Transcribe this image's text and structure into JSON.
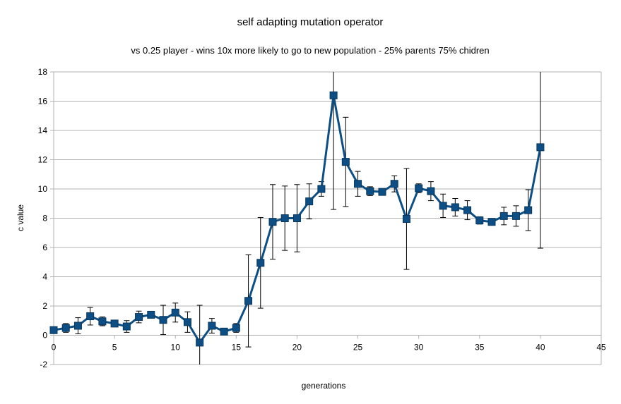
{
  "chart_data": {
    "type": "line",
    "title": "self adapting mutation operator",
    "subtitle": "vs 0.25 player - wins 10x more likely to go to new population - 25% parents 75% chidren",
    "xlabel": "generations",
    "ylabel": "c value",
    "xlim": [
      0,
      45
    ],
    "ylim": [
      -2,
      18
    ],
    "xticks": [
      0,
      5,
      10,
      15,
      20,
      25,
      30,
      35,
      40,
      45
    ],
    "yticks": [
      -2,
      0,
      2,
      4,
      6,
      8,
      10,
      12,
      14,
      16,
      18
    ],
    "grid": "horizontal",
    "legend": "none",
    "series_color": "#0d4f85",
    "series": [
      {
        "x": [
          0,
          1,
          2,
          3,
          4,
          5,
          6,
          7,
          8,
          9,
          10,
          11,
          12,
          13,
          14,
          15,
          16,
          17,
          18,
          19,
          20,
          21,
          22,
          23,
          24,
          25,
          26,
          27,
          28,
          29,
          30,
          31,
          32,
          33,
          34,
          35,
          36,
          37,
          38,
          39,
          40
        ],
        "y": [
          0.35,
          0.5,
          0.65,
          1.3,
          0.95,
          0.8,
          0.6,
          1.25,
          1.4,
          1.05,
          1.55,
          0.9,
          -0.5,
          0.65,
          0.25,
          0.5,
          2.35,
          4.95,
          7.75,
          8.0,
          8.0,
          9.15,
          10.0,
          16.4,
          11.85,
          10.35,
          9.85,
          9.8,
          10.35,
          7.95,
          10.05,
          9.85,
          8.85,
          8.75,
          8.55,
          7.85,
          7.75,
          8.15,
          8.15,
          8.55,
          12.85
        ],
        "error": [
          0.1,
          0.3,
          0.55,
          0.6,
          0.3,
          0.2,
          0.4,
          0.4,
          0.2,
          1.0,
          0.65,
          0.7,
          2.55,
          0.5,
          0.15,
          0.3,
          3.15,
          3.1,
          2.55,
          2.2,
          2.3,
          1.2,
          0.5,
          7.8,
          3.05,
          0.85,
          0.3,
          0.2,
          0.55,
          3.45,
          0.3,
          0.65,
          0.8,
          0.6,
          0.65,
          0.25,
          0.2,
          0.6,
          0.7,
          1.4,
          6.9
        ]
      }
    ]
  }
}
